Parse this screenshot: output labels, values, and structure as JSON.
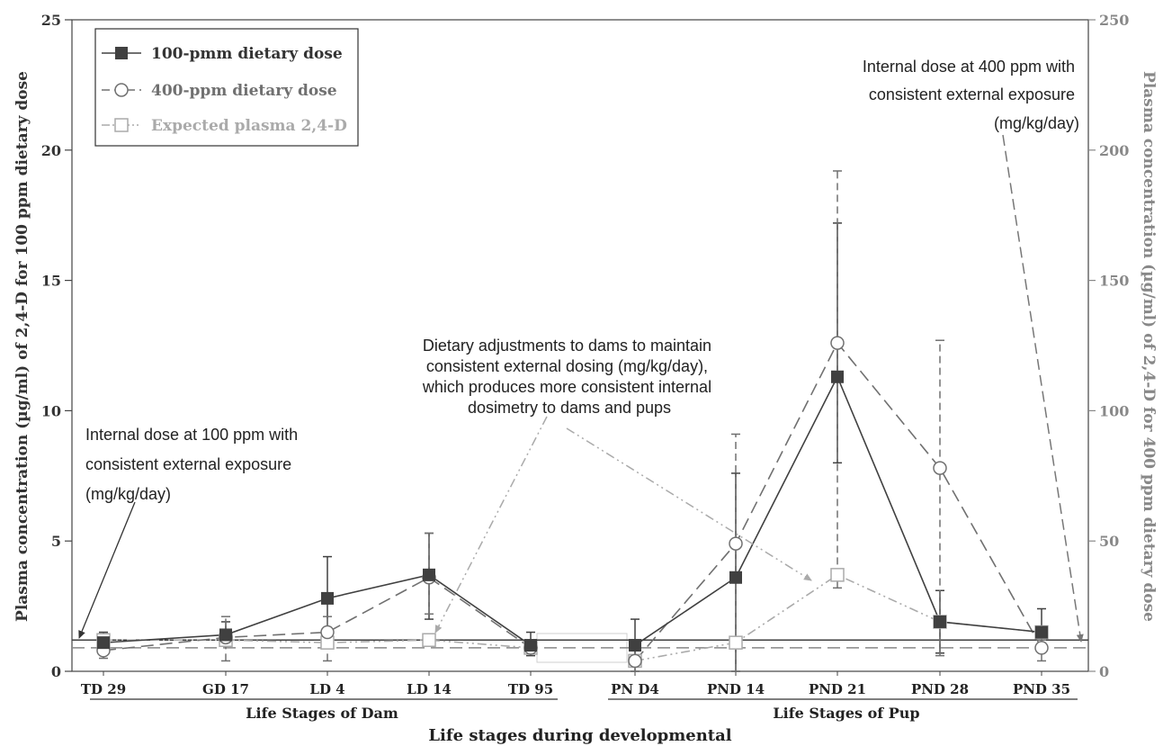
{
  "chart_data": {
    "type": "line",
    "x_title": "Life stages during developmental",
    "groups": [
      {
        "label": "Life Stages of Dam",
        "categories": [
          "TD 29",
          "GD 17",
          "LD 4",
          "LD 14",
          "TD 95"
        ]
      },
      {
        "label": "Life Stages of Pup",
        "categories": [
          "PN D4",
          "PND 14",
          "PND 21",
          "PND 28",
          "PND 35"
        ]
      }
    ],
    "categories": [
      "TD 29",
      "GD 17",
      "LD 4",
      "LD 14",
      "TD 95",
      "PN D4",
      "PND 14",
      "PND 21",
      "PND 28",
      "PND 35"
    ],
    "y_left": {
      "label": "Plasma concentration (µg/ml)  of 2,4-D for 100 ppm dietary dose",
      "min": 0,
      "max": 25,
      "ticks": [
        0,
        5,
        10,
        15,
        20,
        25
      ]
    },
    "y_right": {
      "label": "Plasma concentration (µg/ml)  of 2,4-D for 400 ppm dietary dose",
      "min": 0,
      "max": 250,
      "ticks": [
        0,
        50,
        100,
        150,
        200,
        250
      ]
    },
    "series": [
      {
        "name": "100-pmm dietary dose",
        "axis": "left",
        "color": "#404040",
        "dash": "solid",
        "marker": "filled-square",
        "values": [
          1.1,
          1.4,
          2.8,
          3.7,
          1.0,
          1.0,
          3.6,
          11.3,
          1.9,
          1.5
        ],
        "err_low": [
          0.7,
          1.0,
          1.3,
          2.0,
          0.6,
          0.0,
          0.0,
          8.0,
          0.7,
          0.8
        ],
        "err_high": [
          1.5,
          1.9,
          4.4,
          5.3,
          1.5,
          2.0,
          7.6,
          17.2,
          3.1,
          2.4
        ]
      },
      {
        "name": "400-ppm dietary dose",
        "axis": "right",
        "color": "#707070",
        "dash": "long-dash",
        "marker": "open-circle",
        "values": [
          8,
          13,
          15,
          36,
          9,
          4,
          49,
          126,
          78,
          9
        ],
        "err_low": [
          5,
          4,
          4,
          22,
          7,
          0,
          0,
          32,
          6,
          4
        ],
        "err_high": [
          12,
          21,
          21,
          53,
          12,
          4,
          91,
          192,
          127,
          12
        ]
      },
      {
        "name": "Expected plasma 2,4-D",
        "axis": "right",
        "color": "#aaaaaa",
        "dash": "dash-dot-dot",
        "marker": "open-square",
        "values": [
          12,
          12,
          11,
          12,
          9,
          4,
          11,
          37,
          19,
          15
        ]
      }
    ],
    "reference_lines": [
      {
        "axis": "left",
        "value": 1.2,
        "style": "solid",
        "color": "#404040"
      },
      {
        "axis": "right",
        "value": 9,
        "style": "dashed",
        "color": "#888888"
      }
    ],
    "legend": {
      "position": "top-left"
    },
    "annotations": [
      {
        "text": [
          "Internal dose at 100 ppm with",
          "consistent external exposure",
          "(mg/kg/day)"
        ]
      },
      {
        "text": [
          "Dietary adjustments to dams to maintain",
          "consistent external dosing (mg/kg/day),",
          "which produces more consistent internal",
          "dosimetry to dams and pups"
        ]
      },
      {
        "text": [
          "Internal dose at 400 ppm with",
          "consistent external exposure",
          "(mg/kg/day)"
        ]
      }
    ]
  }
}
